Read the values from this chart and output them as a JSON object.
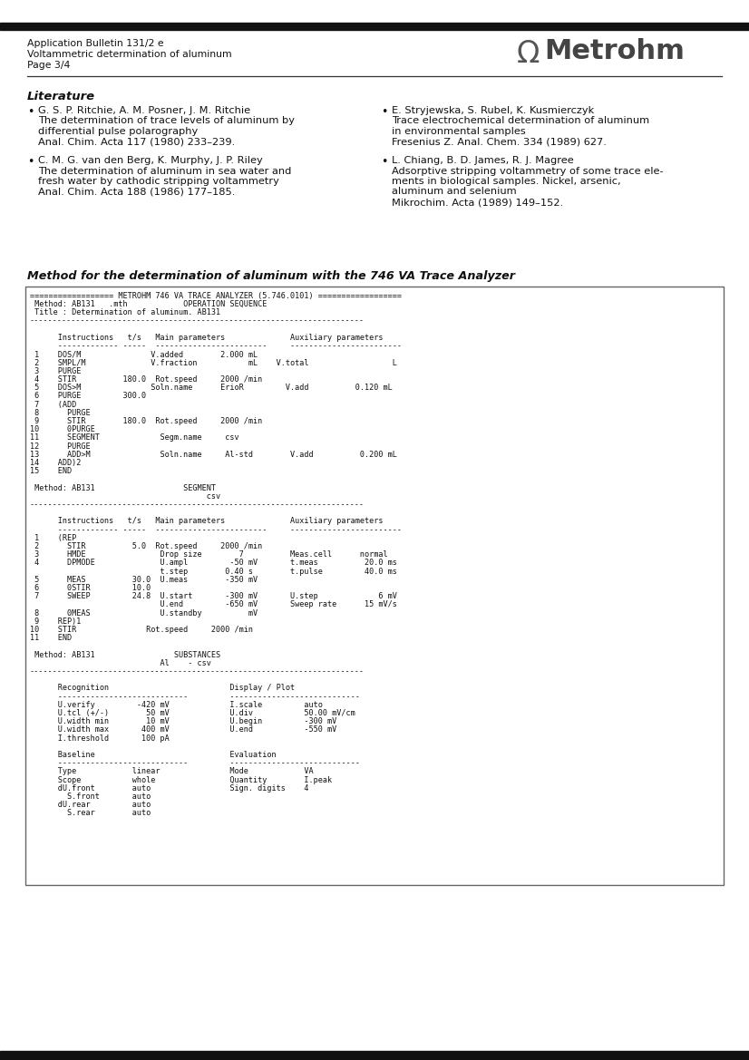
{
  "page_header_line1": "Application Bulletin 131/2 e",
  "page_header_line2": "Voltammetric determination of aluminum",
  "page_header_line3": "Page 3/4",
  "metrohm_text": "Metrohm",
  "section1_title": "Literature",
  "bullets_left": [
    {
      "author": "G. S. P. Ritchie, A. M. Posner, J. M. Ritchie",
      "lines": [
        "The determination of trace levels of aluminum by",
        "differential pulse polarography",
        "Anal. Chim. Acta 117 (1980) 233–239."
      ]
    },
    {
      "author": "C. M. G. van den Berg, K. Murphy, J. P. Riley",
      "lines": [
        "The determination of aluminum in sea water and",
        "fresh water by cathodic stripping voltammetry",
        "Anal. Chim. Acta 188 (1986) 177–185."
      ]
    }
  ],
  "bullets_right": [
    {
      "author": "E. Stryjewska, S. Rubel, K. Kusmierczyk",
      "lines": [
        "Trace electrochemical determination of aluminum",
        "in environmental samples",
        "Fresenius Z. Anal. Chem. 334 (1989) 627."
      ]
    },
    {
      "author": "L. Chiang, B. D. James, R. J. Magree",
      "lines": [
        "Adsorptive stripping voltammetry of some trace ele-",
        "ments in biological samples. Nickel, arsenic,",
        "aluminum and selenium",
        "Mikrochim. Acta (1989) 149–152."
      ]
    }
  ],
  "section2_title": "Method for the determination of aluminum with the 746 VA Trace Analyzer",
  "code_block": "================== METROHM 746 VA TRACE ANALYZER (5.746.0101) ==================\n Method: AB131   .mth            OPERATION SEQUENCE\n Title : Determination of aluminum. AB131\n------------------------------------------------------------------------\n\n      Instructions   t/s   Main parameters              Auxiliary parameters\n      ------------- -----  ------------------------     ------------------------\n 1    DOS/M               V.added        2.000 mL\n 2    SMPL/M              V.fraction           mL    V.total                  L\n 3    PURGE\n 4    STIR          180.0  Rot.speed     2000 /min\n 5    DOS>M               Soln.name      ErioR         V.add          0.120 mL\n 6    PURGE         300.0\n 7    (ADD\n 8      PURGE\n 9      STIR        180.0  Rot.speed     2000 /min\n10      0PURGE\n11      SEGMENT             Segm.name     csv\n12      PURGE\n13      ADD>M               Soln.name     Al-std        V.add          0.200 mL\n14    ADD)2\n15    END\n\n Method: AB131                   SEGMENT\n                                      csv\n------------------------------------------------------------------------\n\n      Instructions   t/s   Main parameters              Auxiliary parameters\n      ------------- -----  ------------------------     ------------------------\n 1    (REP\n 2      STIR          5.0  Rot.speed     2000 /min\n 3      HMDE                Drop size        7          Meas.cell      normal\n 4      DPMODE              U.ampl         -50 mV       t.meas          20.0 ms\n                            t.step        0.40 s        t.pulse         40.0 ms\n 5      MEAS          30.0  U.meas        -350 mV\n 6      0STIR         10.0\n 7      SWEEP         24.8  U.start       -300 mV       U.step             6 mV\n                            U.end         -650 mV       Sweep rate      15 mV/s\n 8      0MEAS               U.standby          mV\n 9    REP)1\n10    STIR               Rot.speed     2000 /min\n11    END\n\n Method: AB131                 SUBSTANCES\n                            Al    - csv\n------------------------------------------------------------------------\n\n      Recognition                          Display / Plot\n      ----------------------------         ----------------------------\n      U.verify         -420 mV             I.scale         auto\n      U.tcl (+/-)        50 mV             U.div           50.00 mV/cm\n      U.width min        10 mV             U.begin         -300 mV\n      U.width max       400 mV             U.end           -550 mV\n      I.threshold       100 pA\n\n      Baseline                             Evaluation\n      ----------------------------         ----------------------------\n      Type            linear               Mode            VA\n      Scope           whole                Quantity        I.peak\n      dU.front        auto                 Sign. digits    4\n        S.front       auto\n      dU.rear         auto\n        S.rear        auto",
  "bg_color": "#ffffff",
  "header_bar_color": "#111111",
  "box_border_color": "#666666",
  "text_color": "#111111"
}
